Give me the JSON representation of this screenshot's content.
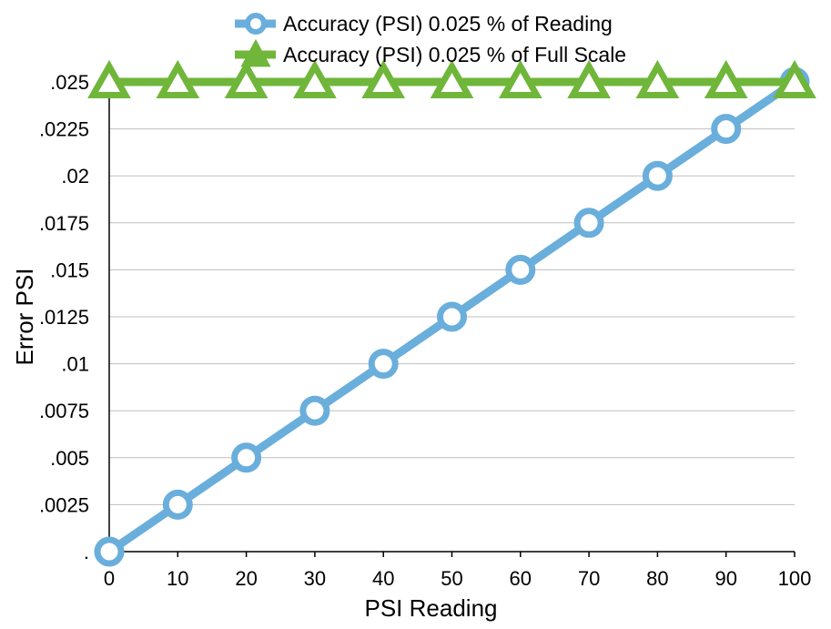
{
  "chart_data": {
    "type": "line",
    "x": [
      0,
      10,
      20,
      30,
      40,
      50,
      60,
      70,
      80,
      90,
      100
    ],
    "series": [
      {
        "name": "Accuracy (PSI) 0.025 % of Reading",
        "values": [
          0,
          0.0025,
          0.005,
          0.0075,
          0.01,
          0.0125,
          0.015,
          0.0175,
          0.02,
          0.0225,
          0.025
        ],
        "color": "#6aaedc",
        "marker": "circle"
      },
      {
        "name": "Accuracy (PSI) 0.025 % of Full Scale",
        "values": [
          0.025,
          0.025,
          0.025,
          0.025,
          0.025,
          0.025,
          0.025,
          0.025,
          0.025,
          0.025,
          0.025
        ],
        "color": "#6fb63a",
        "marker": "triangle"
      }
    ],
    "xticks": [
      "0",
      "10",
      "20",
      "30",
      "40",
      "50",
      "60",
      "70",
      "80",
      "90",
      "100"
    ],
    "yticks": [
      {
        "value": 0,
        "label": "."
      },
      {
        "value": 0.0025,
        "label": ".0025"
      },
      {
        "value": 0.005,
        "label": ".005"
      },
      {
        "value": 0.0075,
        "label": ".0075"
      },
      {
        "value": 0.01,
        "label": ".01"
      },
      {
        "value": 0.0125,
        "label": ".0125"
      },
      {
        "value": 0.015,
        "label": ".015"
      },
      {
        "value": 0.0175,
        "label": ".0175"
      },
      {
        "value": 0.02,
        "label": ".02"
      },
      {
        "value": 0.0225,
        "label": ".0225"
      },
      {
        "value": 0.025,
        "label": ".025"
      }
    ],
    "xlim": [
      0,
      100
    ],
    "ylim": [
      0,
      0.025
    ],
    "title": "",
    "xlabel": "PSI Reading",
    "ylabel": "Error PSI",
    "grid": "horizontal",
    "legend_position": "top"
  }
}
